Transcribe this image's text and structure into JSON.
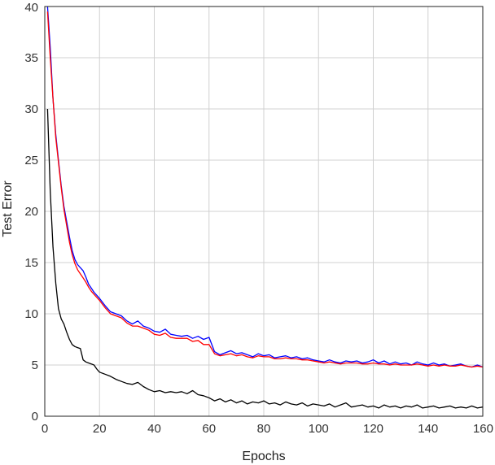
{
  "chart_data": {
    "type": "line",
    "title": "",
    "xlabel": "Epochs",
    "ylabel": "Test Error",
    "xlim": [
      0,
      160
    ],
    "ylim": [
      0,
      40
    ],
    "xticks": [
      0,
      20,
      40,
      60,
      80,
      100,
      120,
      140,
      160
    ],
    "yticks": [
      0,
      5,
      10,
      15,
      20,
      25,
      30,
      35,
      40
    ],
    "grid": true,
    "series": [
      {
        "color": "#0000ff",
        "x": [
          1,
          2,
          3,
          4,
          5,
          6,
          7,
          8,
          9,
          10,
          11,
          12,
          13,
          14,
          15,
          16,
          17,
          18,
          20,
          22,
          24,
          26,
          28,
          30,
          32,
          34,
          36,
          38,
          40,
          42,
          44,
          46,
          48,
          50,
          52,
          54,
          56,
          58,
          60,
          62,
          64,
          66,
          68,
          70,
          72,
          74,
          76,
          78,
          80,
          82,
          84,
          86,
          88,
          90,
          92,
          94,
          96,
          98,
          100,
          102,
          104,
          106,
          108,
          110,
          112,
          114,
          116,
          118,
          120,
          122,
          124,
          126,
          128,
          130,
          132,
          134,
          136,
          138,
          140,
          142,
          144,
          146,
          148,
          150,
          152,
          154,
          156,
          158,
          160
        ],
        "values": [
          40,
          36,
          31,
          27.5,
          25,
          22.5,
          20.5,
          19,
          17.5,
          16.2,
          15.3,
          14.8,
          14.5,
          14.2,
          13.6,
          12.9,
          12.5,
          12.1,
          11.5,
          10.8,
          10.2,
          10.0,
          9.8,
          9.3,
          9.0,
          9.3,
          8.8,
          8.6,
          8.3,
          8.2,
          8.5,
          8.0,
          7.9,
          7.8,
          7.9,
          7.6,
          7.8,
          7.5,
          7.7,
          6.3,
          6.0,
          6.2,
          6.4,
          6.1,
          6.2,
          6.0,
          5.8,
          6.1,
          5.9,
          6.0,
          5.7,
          5.8,
          5.9,
          5.7,
          5.8,
          5.6,
          5.7,
          5.5,
          5.4,
          5.3,
          5.5,
          5.3,
          5.2,
          5.4,
          5.3,
          5.4,
          5.2,
          5.3,
          5.5,
          5.2,
          5.4,
          5.1,
          5.3,
          5.1,
          5.2,
          5.0,
          5.3,
          5.1,
          5.0,
          5.2,
          5.0,
          5.1,
          4.9,
          5.0,
          5.1,
          4.9,
          4.8,
          5.0,
          4.8
        ]
      },
      {
        "color": "#ff0000",
        "x": [
          1,
          2,
          3,
          4,
          5,
          6,
          7,
          8,
          9,
          10,
          11,
          12,
          13,
          14,
          15,
          16,
          17,
          18,
          20,
          22,
          24,
          26,
          28,
          30,
          32,
          34,
          36,
          38,
          40,
          42,
          44,
          46,
          48,
          50,
          52,
          54,
          56,
          58,
          60,
          62,
          64,
          66,
          68,
          70,
          72,
          74,
          76,
          78,
          80,
          82,
          84,
          86,
          88,
          90,
          92,
          94,
          96,
          98,
          100,
          102,
          104,
          106,
          108,
          110,
          112,
          114,
          116,
          118,
          120,
          122,
          124,
          126,
          128,
          130,
          132,
          134,
          136,
          138,
          140,
          142,
          144,
          146,
          148,
          150,
          152,
          154,
          156,
          158,
          160
        ],
        "values": [
          39.5,
          35,
          31,
          27.2,
          24.8,
          22.3,
          20.2,
          18.6,
          17.0,
          15.8,
          14.9,
          14.3,
          13.9,
          13.5,
          13.1,
          12.6,
          12.2,
          11.9,
          11.3,
          10.6,
          10.0,
          9.8,
          9.6,
          9.1,
          8.8,
          8.8,
          8.6,
          8.4,
          8.0,
          7.9,
          8.1,
          7.7,
          7.6,
          7.6,
          7.6,
          7.3,
          7.4,
          7.0,
          7.0,
          6.1,
          5.9,
          6.0,
          6.1,
          5.9,
          6.0,
          5.8,
          5.7,
          5.9,
          5.8,
          5.8,
          5.6,
          5.6,
          5.7,
          5.6,
          5.6,
          5.5,
          5.5,
          5.4,
          5.3,
          5.2,
          5.3,
          5.2,
          5.1,
          5.2,
          5.2,
          5.2,
          5.1,
          5.1,
          5.2,
          5.1,
          5.1,
          5.0,
          5.1,
          5.0,
          5.0,
          5.0,
          5.1,
          5.0,
          4.9,
          5.0,
          4.9,
          5.0,
          4.9,
          4.9,
          5.0,
          4.9,
          4.8,
          4.9,
          4.8
        ]
      },
      {
        "color": "#000000",
        "x": [
          1,
          2,
          3,
          4,
          5,
          6,
          7,
          8,
          9,
          10,
          11,
          12,
          13,
          14,
          15,
          16,
          17,
          18,
          19,
          20,
          22,
          24,
          26,
          28,
          30,
          32,
          34,
          36,
          38,
          40,
          42,
          44,
          46,
          48,
          50,
          52,
          54,
          56,
          58,
          60,
          62,
          64,
          66,
          68,
          70,
          72,
          74,
          76,
          78,
          80,
          82,
          84,
          86,
          88,
          90,
          92,
          94,
          96,
          98,
          100,
          102,
          104,
          106,
          108,
          110,
          112,
          114,
          116,
          118,
          120,
          122,
          124,
          126,
          128,
          130,
          132,
          134,
          136,
          138,
          140,
          142,
          144,
          146,
          148,
          150,
          152,
          154,
          156,
          158,
          160
        ],
        "values": [
          30,
          22,
          16.5,
          13,
          10.5,
          9.5,
          9.0,
          8.2,
          7.5,
          7.0,
          6.8,
          6.7,
          6.6,
          5.5,
          5.3,
          5.2,
          5.1,
          5.0,
          4.6,
          4.3,
          4.1,
          3.9,
          3.6,
          3.4,
          3.2,
          3.1,
          3.3,
          2.9,
          2.6,
          2.4,
          2.5,
          2.3,
          2.4,
          2.3,
          2.4,
          2.2,
          2.5,
          2.1,
          2.0,
          1.8,
          1.5,
          1.7,
          1.4,
          1.6,
          1.3,
          1.5,
          1.2,
          1.4,
          1.3,
          1.5,
          1.2,
          1.3,
          1.1,
          1.4,
          1.2,
          1.1,
          1.3,
          1.0,
          1.2,
          1.1,
          1.0,
          1.2,
          0.9,
          1.1,
          1.3,
          0.9,
          1.0,
          1.1,
          0.9,
          1.0,
          0.8,
          1.1,
          0.9,
          1.0,
          0.8,
          1.0,
          0.9,
          1.1,
          0.8,
          0.9,
          1.0,
          0.8,
          0.9,
          1.0,
          0.8,
          0.9,
          0.8,
          1.0,
          0.8,
          0.9
        ]
      }
    ]
  }
}
